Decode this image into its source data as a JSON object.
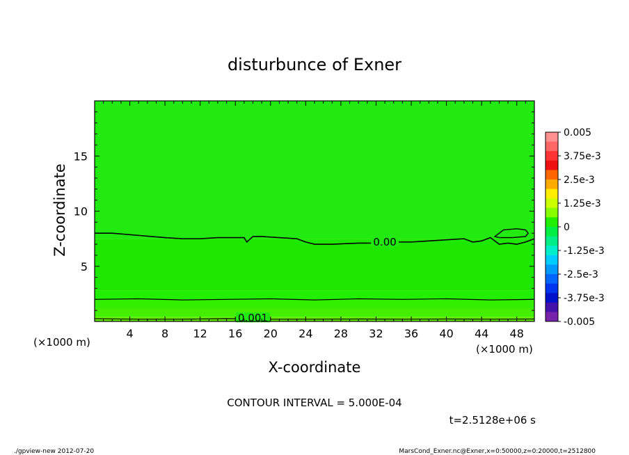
{
  "chart_data": {
    "type": "contour",
    "title": "disturbunce of Exner",
    "xlabel": "X-coordinate",
    "ylabel": "Z-coordinate",
    "x_unit_label": "(×1000 m)",
    "x_unit_label_left": "(×1000 m)",
    "xlim": [
      0,
      50
    ],
    "ylim": [
      0,
      20
    ],
    "x_ticks": [
      {
        "v": 4,
        "label": "4"
      },
      {
        "v": 8,
        "label": "8"
      },
      {
        "v": 12,
        "label": "12"
      },
      {
        "v": 16,
        "label": "16"
      },
      {
        "v": 20,
        "label": "20"
      },
      {
        "v": 24,
        "label": "24"
      },
      {
        "v": 28,
        "label": "28"
      },
      {
        "v": 32,
        "label": "32"
      },
      {
        "v": 36,
        "label": "36"
      },
      {
        "v": 40,
        "label": "40"
      },
      {
        "v": 44,
        "label": "44"
      },
      {
        "v": 48,
        "label": "48"
      }
    ],
    "y_ticks": [
      {
        "v": 5,
        "label": "5"
      },
      {
        "v": 10,
        "label": "10"
      },
      {
        "v": 15,
        "label": "15"
      }
    ],
    "contour_labels": [
      {
        "text": "0.00",
        "x": 33.0,
        "z": 7.2
      },
      {
        "text": "0.001",
        "x": 18.0,
        "z": 0.3
      }
    ],
    "contour_zero_line": {
      "x": [
        0,
        2,
        5,
        8,
        10,
        12,
        14,
        17,
        17.3,
        18,
        19,
        21,
        23,
        24,
        25,
        27,
        30,
        32,
        34,
        36,
        38,
        40,
        42,
        43,
        44,
        45,
        46,
        47,
        48,
        49,
        50
      ],
      "z": [
        8.0,
        8.0,
        7.8,
        7.6,
        7.5,
        7.5,
        7.6,
        7.6,
        7.2,
        7.7,
        7.7,
        7.6,
        7.5,
        7.2,
        7.0,
        7.0,
        7.1,
        7.1,
        7.2,
        7.2,
        7.3,
        7.4,
        7.5,
        7.2,
        7.3,
        7.6,
        7.0,
        7.1,
        7.0,
        7.2,
        7.5
      ]
    },
    "contour_lower_lines": [
      {
        "x": [
          0,
          5,
          10,
          15,
          20,
          25,
          30,
          35,
          40,
          45,
          50
        ],
        "z": [
          2.0,
          2.05,
          1.95,
          2.0,
          2.05,
          1.95,
          2.05,
          2.0,
          2.05,
          1.95,
          2.0
        ]
      },
      {
        "x": [
          0,
          5,
          10,
          15,
          20,
          25,
          30,
          35,
          40,
          45,
          50
        ],
        "z": [
          0.25,
          0.2,
          0.2,
          0.25,
          0.2,
          0.2,
          0.22,
          0.2,
          0.22,
          0.2,
          0.22
        ]
      }
    ],
    "island": {
      "x": [
        45.5,
        46.5,
        48,
        49,
        49.3,
        49,
        47.5,
        46,
        45.5
      ],
      "z": [
        7.7,
        8.3,
        8.4,
        8.3,
        8.0,
        7.7,
        7.6,
        7.6,
        7.7
      ]
    },
    "fill_bands": [
      {
        "z0": 0,
        "z1": 0.4,
        "color": "#66ee00"
      },
      {
        "z0": 0.4,
        "z1": 1.2,
        "color": "#44ee00"
      },
      {
        "z0": 1.2,
        "z1": 2.0,
        "color": "#33ee00"
      },
      {
        "z0": 2.0,
        "z1": 2.8,
        "color": "#22ee00"
      },
      {
        "z0": 2.8,
        "z1": 7.5,
        "color": "#1ee800"
      },
      {
        "z0": 7.5,
        "z1": 20,
        "color": "#22ea10"
      }
    ],
    "colorbar": {
      "labels": [
        "0.005",
        "3.75e-3",
        "2.5e-3",
        "1.25e-3",
        "0",
        "-1.25e-3",
        "-2.5e-3",
        "-3.75e-3",
        "-0.005"
      ],
      "colors": [
        "#ff9090",
        "#ff6666",
        "#ff3333",
        "#ee1111",
        "#ff6600",
        "#ffaa00",
        "#ffee00",
        "#ccff00",
        "#88ff00",
        "#22ee00",
        "#00ee44",
        "#00ee88",
        "#00eecc",
        "#00ccff",
        "#0099ff",
        "#0066ff",
        "#0033ee",
        "#0011cc",
        "#4411aa",
        "#7722aa"
      ]
    }
  },
  "contour_interval": "CONTOUR INTERVAL = 5.000E-04",
  "time_label": "t=2.5128e+06 s",
  "footer_left": "./gpview-new  2012-07-20",
  "footer_right": "MarsCond_Exner.nc@Exner,x=0:50000,z=0:20000,t=2512800"
}
